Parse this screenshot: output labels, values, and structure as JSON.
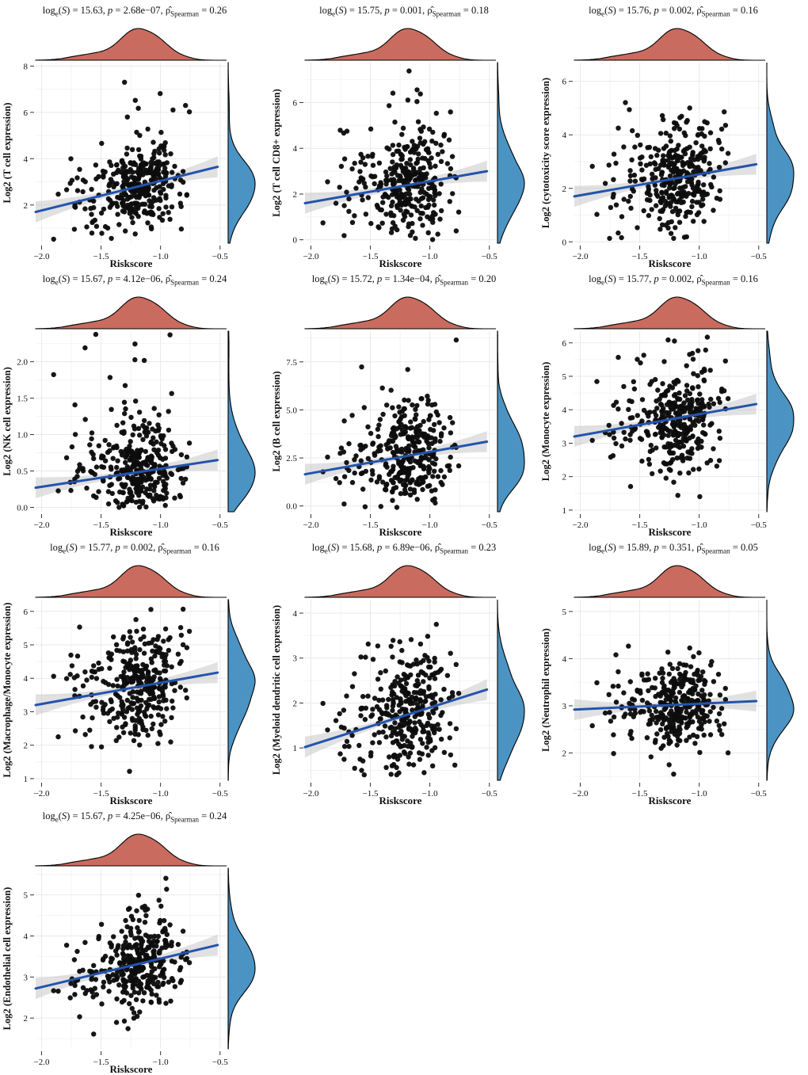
{
  "labels": {
    "log": "log",
    "sub_e": "e",
    "open": "(",
    "S": "S",
    "close": ")",
    "eq": " = ",
    "comma": ", ",
    "p": "p",
    "rho_hat": "ρ̂",
    "spearman": "Spearman"
  },
  "chart_data": {
    "type": "scatter",
    "subtype": "joint-scatter-with-marginal-densities",
    "xlabel": "Riskscore",
    "x_axis": {
      "domain": [
        -2.05,
        -0.445
      ],
      "ticks": {
        "values": [
          -2.0,
          -1.5,
          -1.0,
          -0.5
        ],
        "labels": [
          "−2.0",
          "−1.5",
          "−1.0",
          "−0.5"
        ]
      },
      "distribution": {
        "n": 340,
        "mixture": [
          {
            "w": 0.78,
            "mean": -1.13,
            "sd": 0.16
          },
          {
            "w": 0.22,
            "mean": -1.5,
            "sd": 0.17
          }
        ],
        "clip": [
          -2.04,
          -0.52
        ],
        "seed": 42
      }
    },
    "style": {
      "point_color": "#0d0d0d",
      "line_color": "#2453ae",
      "band_color": "#c9c9c9",
      "top_density_fill": "#c96b5e",
      "right_density_fill": "#4b93c3",
      "density_stroke": "#000000",
      "grid_major": "#e9e9e9",
      "grid_minor": "#f4f4f4",
      "text_color": "#111111"
    },
    "panels": [
      {
        "key": "t-cell",
        "stats": {
          "logS": "15.63",
          "p": "2.68e−07",
          "rho": "0.26"
        },
        "ylabel": "Log2 (T cell expression)",
        "ydomain": [
          0.35,
          8.15
        ],
        "yticks": {
          "values": [
            2,
            4,
            6,
            8
          ],
          "labels": [
            "2",
            "4",
            "6",
            "8"
          ]
        },
        "regression": {
          "x": [
            -2.05,
            -0.52
          ],
          "y": [
            1.7,
            3.65
          ]
        },
        "scatter": {
          "n": 340,
          "sd": 0.85,
          "skew_p": 0.1,
          "skew_mult": 2.8,
          "seed": 101
        }
      },
      {
        "key": "t-cell-cd8",
        "stats": {
          "logS": "15.75",
          "p": "0.001",
          "rho": "0.18"
        },
        "ylabel": "Log2 (T cell CD8+ expression)",
        "ydomain": [
          -0.15,
          7.75
        ],
        "yticks": {
          "values": [
            0,
            2,
            4,
            6
          ],
          "labels": [
            "0",
            "2",
            "4",
            "6"
          ]
        },
        "regression": {
          "x": [
            -2.05,
            -0.52
          ],
          "y": [
            1.6,
            3.0
          ]
        },
        "scatter": {
          "n": 340,
          "sd": 1.25,
          "skew_p": 0.05,
          "skew_mult": 2.2,
          "seed": 102
        }
      },
      {
        "key": "cytotoxicity-score",
        "stats": {
          "logS": "15.76",
          "p": "0.002",
          "rho": "0.16"
        },
        "ylabel": "Log2 (cytotoxicity score expression)",
        "ydomain": [
          -0.05,
          6.7
        ],
        "yticks": {
          "values": [
            0,
            2,
            4,
            6
          ],
          "labels": [
            "0",
            "2",
            "4",
            "6"
          ]
        },
        "regression": {
          "x": [
            -2.05,
            -0.52
          ],
          "y": [
            1.7,
            2.9
          ]
        },
        "scatter": {
          "n": 340,
          "sd": 1.0,
          "skew_p": 0.04,
          "skew_mult": 2.0,
          "seed": 103
        }
      },
      {
        "key": "nk-cell",
        "stats": {
          "logS": "15.67",
          "p": "4.12e−06",
          "rho": "0.24"
        },
        "ylabel": "Log2 (NK cell expression)",
        "ydomain": [
          -0.06,
          2.42
        ],
        "yticks": {
          "values": [
            0.0,
            0.5,
            1.0,
            1.5,
            2.0
          ],
          "labels": [
            "0.0",
            "0.5",
            "1.0",
            "1.5",
            "2.0"
          ]
        },
        "regression": {
          "x": [
            -2.05,
            -0.52
          ],
          "y": [
            0.27,
            0.65
          ]
        },
        "scatter": {
          "n": 340,
          "sd": 0.33,
          "skew_p": 0.1,
          "skew_mult": 2.6,
          "seed": 104
        }
      },
      {
        "key": "b-cell",
        "stats": {
          "logS": "15.72",
          "p": "1.34e−04",
          "rho": "0.20"
        },
        "ylabel": "Log2 (B cell expression)",
        "ydomain": [
          -0.3,
          9.1
        ],
        "yticks": {
          "values": [
            0.0,
            2.5,
            5.0,
            7.5
          ],
          "labels": [
            "0.0",
            "2.5",
            "5.0",
            "7.5"
          ]
        },
        "regression": {
          "x": [
            -2.05,
            -0.52
          ],
          "y": [
            1.65,
            3.35
          ]
        },
        "scatter": {
          "n": 340,
          "sd": 1.45,
          "skew_p": 0.05,
          "skew_mult": 2.2,
          "seed": 105
        }
      },
      {
        "key": "monocyte",
        "stats": {
          "logS": "15.77",
          "p": "0.002",
          "rho": "0.16"
        },
        "ylabel": "Log2 (Monocyte expression)",
        "ydomain": [
          0.95,
          6.35
        ],
        "yticks": {
          "values": [
            1,
            2,
            3,
            4,
            5,
            6
          ],
          "labels": [
            "1",
            "2",
            "3",
            "4",
            "5",
            "6"
          ]
        },
        "regression": {
          "x": [
            -2.05,
            -0.52
          ],
          "y": [
            3.2,
            4.17
          ]
        },
        "scatter": {
          "n": 340,
          "sd": 0.88,
          "skew_p": 0.02,
          "skew_mult": 1.5,
          "seed": 106
        }
      },
      {
        "key": "macrophage-monocyte",
        "stats": {
          "logS": "15.77",
          "p": "0.002",
          "rho": "0.16"
        },
        "ylabel": "Log2 (Macrophage/Monocyte expression)",
        "ydomain": [
          0.95,
          6.35
        ],
        "yticks": {
          "values": [
            1,
            2,
            3,
            4,
            5,
            6
          ],
          "labels": [
            "1",
            "2",
            "3",
            "4",
            "5",
            "6"
          ]
        },
        "regression": {
          "x": [
            -2.05,
            -0.52
          ],
          "y": [
            3.2,
            4.17
          ]
        },
        "scatter": {
          "n": 340,
          "sd": 0.88,
          "skew_p": 0.02,
          "skew_mult": 1.5,
          "seed": 107
        }
      },
      {
        "key": "myeloid-dendritic",
        "stats": {
          "logS": "15.68",
          "p": "6.89e−06",
          "rho": "0.23"
        },
        "ylabel": "Log2 (Myeloid dendritic cell expression)",
        "ydomain": [
          0.28,
          4.3
        ],
        "yticks": {
          "values": [
            1,
            2,
            3,
            4
          ],
          "labels": [
            "1",
            "2",
            "3",
            "4"
          ]
        },
        "regression": {
          "x": [
            -2.05,
            -0.52
          ],
          "y": [
            1.02,
            2.3
          ]
        },
        "scatter": {
          "n": 340,
          "sd": 0.7,
          "skew_p": 0.04,
          "skew_mult": 1.8,
          "seed": 108
        }
      },
      {
        "key": "neutrophil",
        "stats": {
          "logS": "15.89",
          "p": "0.351",
          "rho": "0.05"
        },
        "ylabel": "Log2 (Neutrophil expression)",
        "ydomain": [
          1.42,
          5.25
        ],
        "yticks": {
          "values": [
            2,
            3,
            4,
            5
          ],
          "labels": [
            "2",
            "3",
            "4",
            "5"
          ]
        },
        "regression": {
          "x": [
            -2.05,
            -0.52
          ],
          "y": [
            2.92,
            3.1
          ]
        },
        "scatter": {
          "n": 340,
          "sd": 0.44,
          "skew_p": 0.02,
          "skew_mult": 1.5,
          "seed": 109
        }
      },
      {
        "key": "endothelial",
        "stats": {
          "logS": "15.67",
          "p": "4.25e−06",
          "rho": "0.24"
        },
        "ylabel": "Log2 (Endothelial cell expression)",
        "ydomain": [
          1.25,
          5.65
        ],
        "yticks": {
          "values": [
            2,
            3,
            4,
            5
          ],
          "labels": [
            "2",
            "3",
            "4",
            "5"
          ]
        },
        "regression": {
          "x": [
            -2.05,
            -0.52
          ],
          "y": [
            2.72,
            3.78
          ]
        },
        "scatter": {
          "n": 340,
          "sd": 0.6,
          "skew_p": 0.03,
          "skew_mult": 1.6,
          "seed": 110
        }
      }
    ]
  }
}
